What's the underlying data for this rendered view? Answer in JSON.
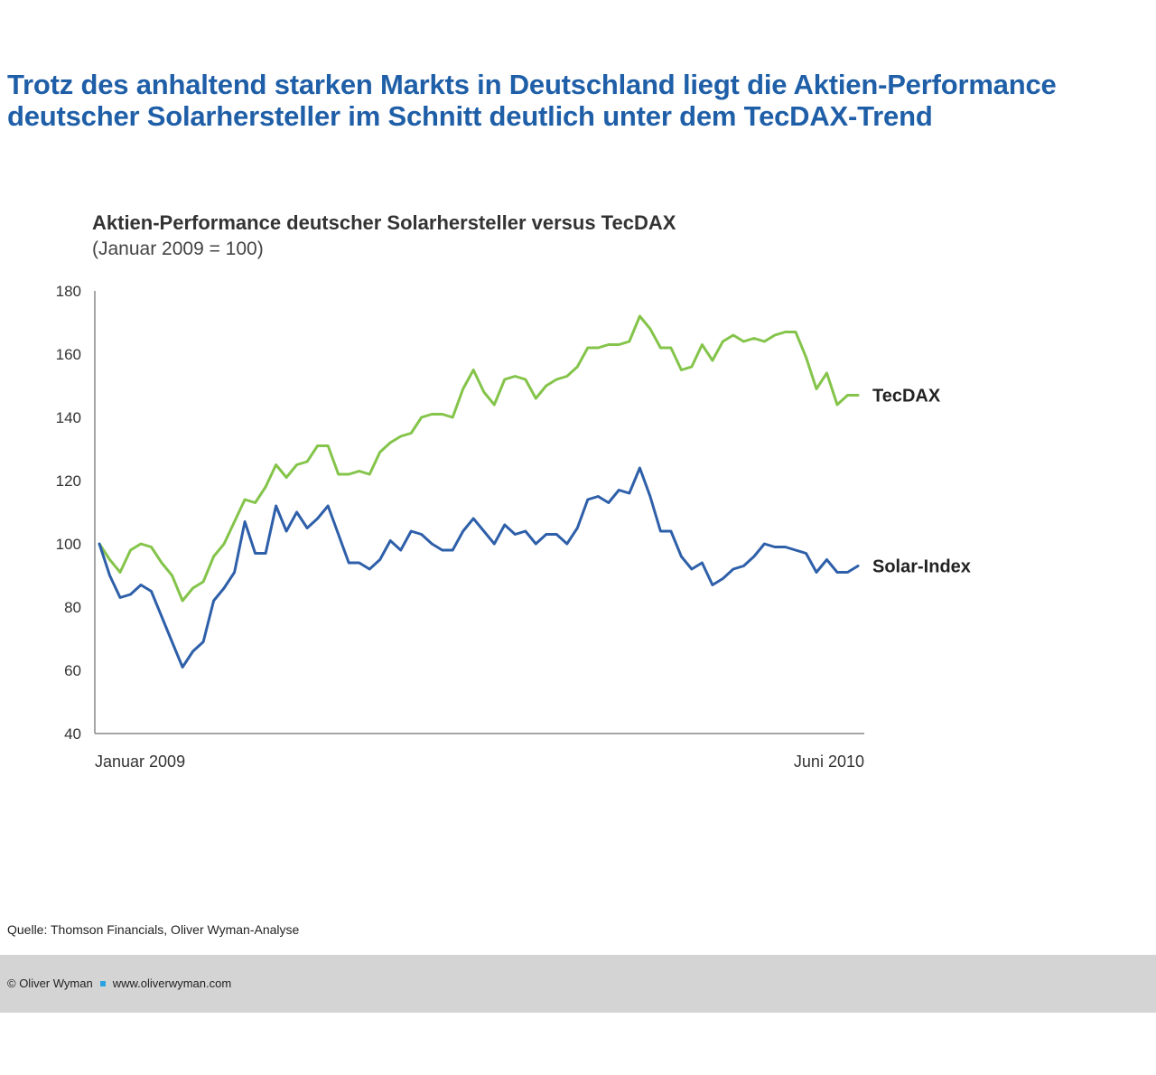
{
  "headline": {
    "line1": "Trotz des anhaltend starken Markts in Deutschland liegt die Aktien-Performance",
    "line2": "deutscher Solarhersteller im Schnitt deutlich unter dem TecDAX-Trend"
  },
  "chart_data": {
    "type": "line",
    "title": "Aktien-Performance deutscher Solarhersteller versus TecDAX",
    "subtitle": "(Januar 2009 = 100)",
    "xlabel": "",
    "ylabel": "",
    "ylim": [
      40,
      180
    ],
    "yticks": [
      180,
      160,
      140,
      120,
      100,
      80,
      60,
      40
    ],
    "xtick_labels": [
      "Januar 2009",
      "Juni 2010"
    ],
    "grid": false,
    "legend_placement": "right, labels at line ends",
    "series": [
      {
        "name": "TecDAX",
        "color": "#84c44a",
        "values": [
          100,
          95,
          91,
          98,
          100,
          99,
          94,
          90,
          82,
          86,
          88,
          96,
          100,
          107,
          114,
          113,
          118,
          125,
          121,
          125,
          126,
          131,
          131,
          122,
          122,
          123,
          122,
          129,
          132,
          134,
          135,
          140,
          141,
          141,
          140,
          149,
          155,
          148,
          144,
          152,
          153,
          152,
          146,
          150,
          152,
          153,
          156,
          162,
          162,
          163,
          163,
          164,
          172,
          168,
          162,
          162,
          155,
          156,
          163,
          158,
          164,
          166,
          164,
          165,
          164,
          166,
          167,
          167,
          159,
          149,
          154,
          144,
          147,
          147
        ]
      },
      {
        "name": "Solar-Index",
        "color": "#2e5fa9",
        "values": [
          100,
          90,
          83,
          84,
          87,
          85,
          77,
          69,
          61,
          66,
          69,
          82,
          86,
          91,
          107,
          97,
          97,
          112,
          104,
          110,
          105,
          108,
          112,
          103,
          94,
          94,
          92,
          95,
          101,
          98,
          104,
          103,
          100,
          98,
          98,
          104,
          108,
          104,
          100,
          106,
          103,
          104,
          100,
          103,
          103,
          100,
          105,
          114,
          115,
          113,
          117,
          116,
          124,
          115,
          104,
          104,
          96,
          92,
          94,
          87,
          89,
          92,
          93,
          96,
          100,
          99,
          99,
          98,
          97,
          91,
          95,
          91,
          91,
          93
        ]
      }
    ]
  },
  "source": "Quelle: Thomson Financials, Oliver Wyman-Analyse",
  "footer": {
    "copyright": "© Oliver Wyman",
    "url": "www.oliverwyman.com"
  },
  "colors": {
    "headline": "#1f5fa8",
    "tecdax": "#84c44a",
    "solar": "#2e5fa9",
    "footer_band": "#d4d4d4",
    "footer_dot": "#2aa3e0"
  }
}
